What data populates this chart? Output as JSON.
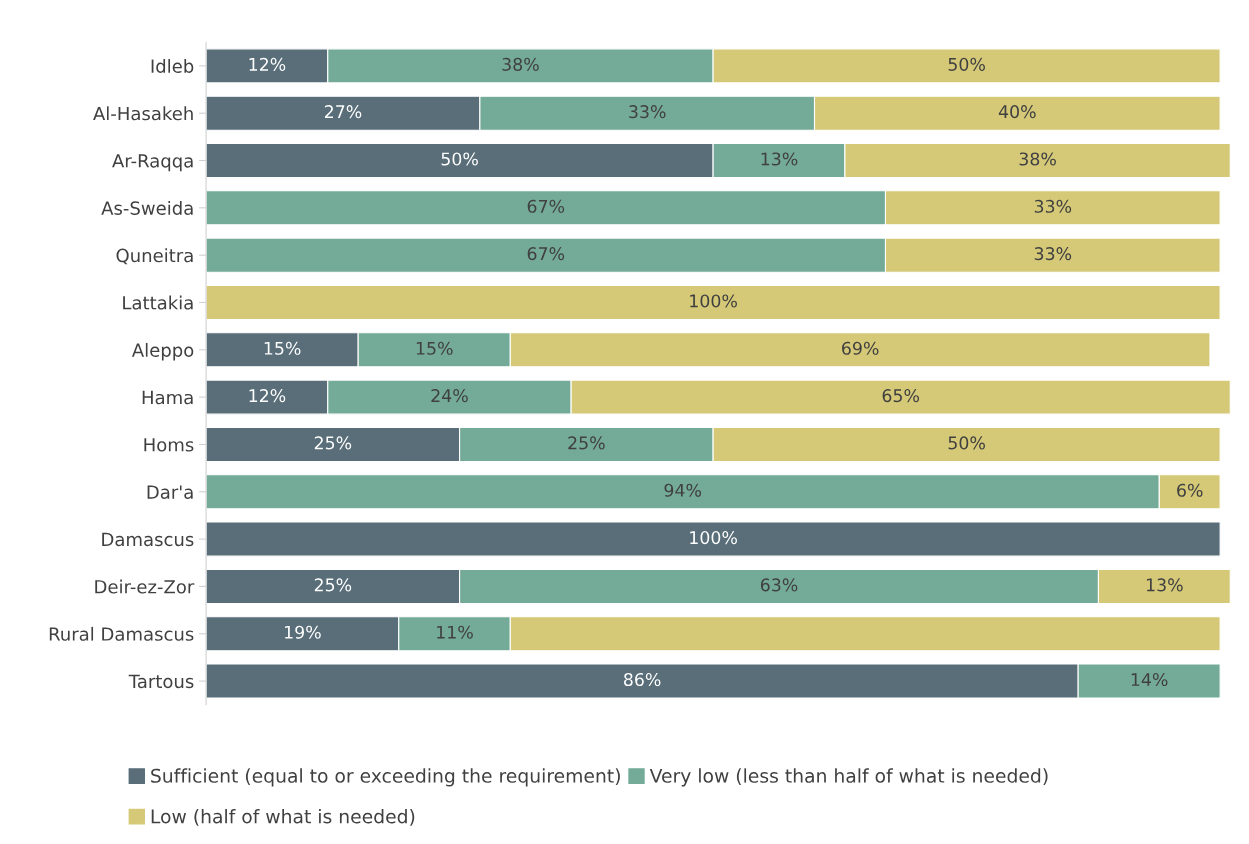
{
  "chart_data": {
    "type": "bar",
    "orientation": "horizontal",
    "stacked": true,
    "legend": "bottom",
    "grid": false,
    "categories": [
      "Idleb",
      "Al-Hasakeh",
      "Ar-Raqqa",
      "As-Sweida",
      "Quneitra",
      "Lattakia",
      "Aleppo",
      "Hama",
      "Homs",
      "Dar'a",
      "Damascus",
      "Deir-ez-Zor",
      "Rural Damascus",
      "Tartous"
    ],
    "series": [
      {
        "name": "Sufficient (equal to or exceeding the requirement)",
        "color": "#596e79",
        "values": [
          12,
          27,
          50,
          null,
          null,
          null,
          15,
          12,
          25,
          null,
          100,
          25,
          19,
          86
        ],
        "value_labels": [
          "12%",
          "27%",
          "50%",
          null,
          null,
          null,
          "15%",
          "12%",
          "25%",
          null,
          "100%",
          "25%",
          "19%",
          "86%"
        ]
      },
      {
        "name": "Very low (less than half of what is needed)",
        "color": "#74ab98",
        "values": [
          38,
          33,
          13,
          67,
          67,
          null,
          15,
          24,
          25,
          94,
          null,
          63,
          11,
          14
        ],
        "value_labels": [
          "38%",
          "33%",
          "13%",
          "67%",
          "67%",
          null,
          "15%",
          "24%",
          "25%",
          "94%",
          null,
          "63%",
          "11%",
          "14%"
        ]
      },
      {
        "name": "Low (half of what is needed)",
        "color": "#d5c978",
        "values": [
          50,
          40,
          38,
          33,
          33,
          100,
          69,
          65,
          50,
          6,
          null,
          13,
          70,
          null
        ],
        "value_labels": [
          "50%",
          "40%",
          "38%",
          "33%",
          "33%",
          "100%",
          "69%",
          "65%",
          "50%",
          "6%",
          null,
          "13%",
          null,
          null
        ]
      }
    ]
  }
}
